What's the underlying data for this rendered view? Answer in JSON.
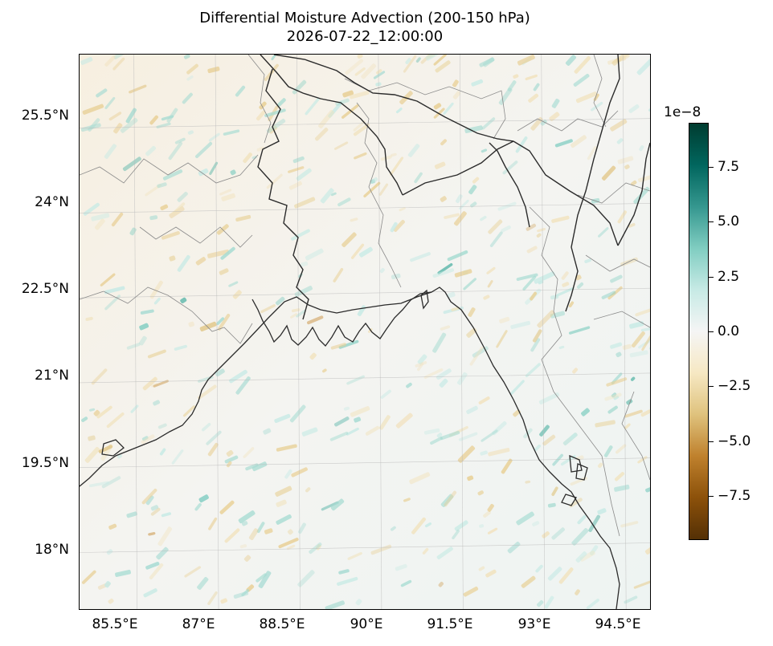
{
  "title": {
    "line1": "Differential Moisture Advection (200-150 hPa)",
    "line2": "2026-07-22_12:00:00"
  },
  "map": {
    "extent": {
      "lon_min": 84.5,
      "lon_max": 95.0,
      "lat_min": 17.0,
      "lat_max": 26.8
    },
    "lat_ticks": [
      {
        "value": 25.5,
        "label": "25.5°N"
      },
      {
        "value": 24.0,
        "label": "24°N"
      },
      {
        "value": 22.5,
        "label": "22.5°N"
      },
      {
        "value": 21.0,
        "label": "21°N"
      },
      {
        "value": 19.5,
        "label": "19.5°N"
      },
      {
        "value": 18.0,
        "label": "18°N"
      }
    ],
    "lon_ticks": [
      {
        "value": 85.5,
        "label": "85.5°E"
      },
      {
        "value": 87.0,
        "label": "87°E"
      },
      {
        "value": 88.5,
        "label": "88.5°E"
      },
      {
        "value": 90.0,
        "label": "90°E"
      },
      {
        "value": 91.5,
        "label": "91.5°E"
      },
      {
        "value": 93.0,
        "label": "93°E"
      },
      {
        "value": 94.5,
        "label": "94.5°E"
      }
    ],
    "features": [
      "coastline",
      "country-borders",
      "state-boundaries",
      "gridlines"
    ],
    "field": "differential moisture advection",
    "colormap": "BrBG"
  },
  "colorbar": {
    "exponent_label": "1e−8",
    "range": [
      -9.5,
      9.5
    ],
    "ticks": [
      {
        "value": 7.5,
        "label": "7.5"
      },
      {
        "value": 5.0,
        "label": "5.0"
      },
      {
        "value": 2.5,
        "label": "2.5"
      },
      {
        "value": 0.0,
        "label": "0.0"
      },
      {
        "value": -2.5,
        "label": "−2.5"
      },
      {
        "value": -5.0,
        "label": "−5.0"
      },
      {
        "value": -7.5,
        "label": "−7.5"
      }
    ],
    "colors": [
      "#543005",
      "#8c510a",
      "#bf812d",
      "#dfc27d",
      "#f6e8c3",
      "#f5f5f5",
      "#c7eae5",
      "#80cdc1",
      "#35978f",
      "#01665e",
      "#003c30"
    ]
  }
}
